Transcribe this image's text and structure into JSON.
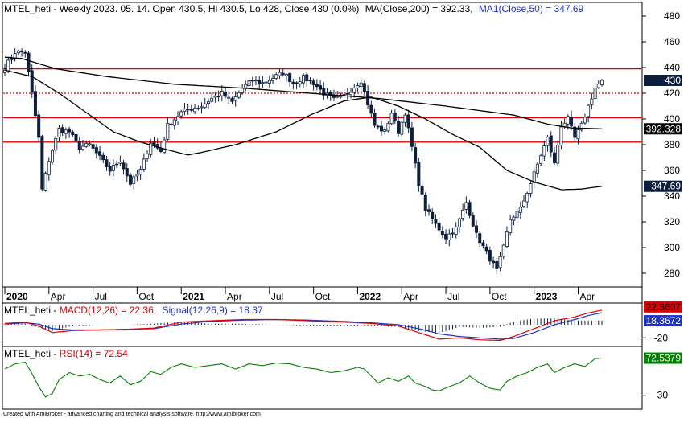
{
  "header": {
    "main": "MTEL_heti - Weekly 2023. 05. 14. Open 430.5, Hi 430.5, Lo 428, Close 430 (0.0%)",
    "ma200": "MA(Close,200) = 392.33,",
    "ma50": "MA1(Close,50) = 347.69"
  },
  "macd_header": {
    "prefix": "MTEL_heti - ",
    "macd": "MACD(12,26) = 22.36,",
    "signal": "Signal(12,26,9) = 18.37"
  },
  "rsi_header": {
    "prefix": "MTEL_heti - ",
    "rsi": "RSI(14) = 72.54"
  },
  "footer": "Created with AmiBroker - advanced charting and technical analysis software. http://www.amibroker.com",
  "colors": {
    "candle": "#0d1f3c",
    "ma": "#000000",
    "level": "#dd0000",
    "macd": "#dd0000",
    "signal": "#1e32c8",
    "rsi": "#008000",
    "hist": "#0d1f3c"
  },
  "chart_data": [
    {
      "type": "candlestick",
      "name": "MTEL_heti",
      "ylim": [
        270,
        490
      ],
      "yticks": [
        280,
        300,
        320,
        340,
        360,
        380,
        400,
        420,
        440,
        460,
        480
      ],
      "x_labels": [
        {
          "label": "2020",
          "bold": true,
          "w": 0
        },
        {
          "label": "Apr",
          "bold": false,
          "w": 13
        },
        {
          "label": "Jul",
          "bold": false,
          "w": 26
        },
        {
          "label": "Oct",
          "bold": false,
          "w": 39
        },
        {
          "label": "2021",
          "bold": true,
          "w": 52
        },
        {
          "label": "Apr",
          "bold": false,
          "w": 65
        },
        {
          "label": "Jul",
          "bold": false,
          "w": 78
        },
        {
          "label": "Oct",
          "bold": false,
          "w": 91
        },
        {
          "label": "2022",
          "bold": true,
          "w": 104
        },
        {
          "label": "Apr",
          "bold": false,
          "w": 117
        },
        {
          "label": "Jul",
          "bold": false,
          "w": 130
        },
        {
          "label": "Oct",
          "bold": false,
          "w": 143
        },
        {
          "label": "2023",
          "bold": true,
          "w": 156
        },
        {
          "label": "Apr",
          "bold": false,
          "w": 169
        }
      ],
      "horizontal_levels": [
        {
          "value": 439,
          "style": "solid"
        },
        {
          "value": 420,
          "style": "dotted"
        },
        {
          "value": 401,
          "style": "solid"
        },
        {
          "value": 382,
          "style": "solid"
        }
      ],
      "close_anchors": [
        [
          0,
          440
        ],
        [
          3,
          452
        ],
        [
          6,
          452
        ],
        [
          8,
          420
        ],
        [
          10,
          385
        ],
        [
          11,
          345
        ],
        [
          13,
          368
        ],
        [
          16,
          392
        ],
        [
          19,
          390
        ],
        [
          22,
          378
        ],
        [
          25,
          380
        ],
        [
          28,
          370
        ],
        [
          31,
          360
        ],
        [
          34,
          368
        ],
        [
          37,
          350
        ],
        [
          40,
          360
        ],
        [
          43,
          382
        ],
        [
          46,
          375
        ],
        [
          48,
          395
        ],
        [
          52,
          405
        ],
        [
          55,
          408
        ],
        [
          58,
          410
        ],
        [
          61,
          416
        ],
        [
          64,
          420
        ],
        [
          67,
          413
        ],
        [
          70,
          424
        ],
        [
          73,
          430
        ],
        [
          76,
          428
        ],
        [
          79,
          432
        ],
        [
          82,
          436
        ],
        [
          85,
          428
        ],
        [
          88,
          432
        ],
        [
          91,
          428
        ],
        [
          94,
          420
        ],
        [
          97,
          415
        ],
        [
          100,
          418
        ],
        [
          103,
          425
        ],
        [
          105,
          430
        ],
        [
          107,
          412
        ],
        [
          109,
          395
        ],
        [
          112,
          390
        ],
        [
          114,
          405
        ],
        [
          116,
          390
        ],
        [
          118,
          405
        ],
        [
          120,
          378
        ],
        [
          122,
          350
        ],
        [
          124,
          330
        ],
        [
          127,
          318
        ],
        [
          130,
          308
        ],
        [
          133,
          315
        ],
        [
          136,
          335
        ],
        [
          139,
          310
        ],
        [
          142,
          296
        ],
        [
          145,
          282
        ],
        [
          147,
          300
        ],
        [
          149,
          322
        ],
        [
          152,
          330
        ],
        [
          155,
          350
        ],
        [
          158,
          372
        ],
        [
          160,
          385
        ],
        [
          162,
          365
        ],
        [
          164,
          395
        ],
        [
          166,
          400
        ],
        [
          168,
          385
        ],
        [
          170,
          395
        ],
        [
          172,
          410
        ],
        [
          174,
          424
        ],
        [
          176,
          430
        ]
      ],
      "ma200_anchors": [
        [
          0,
          448
        ],
        [
          5,
          447
        ],
        [
          15,
          439
        ],
        [
          30,
          433
        ],
        [
          50,
          427
        ],
        [
          70,
          424
        ],
        [
          90,
          420
        ],
        [
          110,
          416
        ],
        [
          130,
          410
        ],
        [
          150,
          403
        ],
        [
          160,
          396
        ],
        [
          167,
          393
        ],
        [
          176,
          392.33
        ]
      ],
      "ma50_anchors": [
        [
          0,
          438
        ],
        [
          8,
          433
        ],
        [
          16,
          420
        ],
        [
          24,
          405
        ],
        [
          32,
          390
        ],
        [
          40,
          382
        ],
        [
          48,
          376
        ],
        [
          54,
          372
        ],
        [
          58,
          374
        ],
        [
          68,
          380
        ],
        [
          80,
          390
        ],
        [
          90,
          403
        ],
        [
          100,
          414
        ],
        [
          108,
          417
        ],
        [
          116,
          410
        ],
        [
          124,
          400
        ],
        [
          132,
          388
        ],
        [
          140,
          378
        ],
        [
          148,
          360
        ],
        [
          156,
          351
        ],
        [
          164,
          345
        ],
        [
          170,
          345.5
        ],
        [
          176,
          347.69
        ]
      ],
      "last_values": {
        "close": "430",
        "ma200": "392.328",
        "ma50": "347.69"
      }
    },
    {
      "type": "macd",
      "name": "MACD(12,26)",
      "ylim": [
        -32,
        32
      ],
      "yticks": [
        -20
      ],
      "macd_anchors": [
        [
          0,
          2
        ],
        [
          6,
          4
        ],
        [
          10,
          -2
        ],
        [
          14,
          -12
        ],
        [
          20,
          -9
        ],
        [
          28,
          -8
        ],
        [
          36,
          -7
        ],
        [
          44,
          -5
        ],
        [
          52,
          4
        ],
        [
          60,
          6
        ],
        [
          70,
          8
        ],
        [
          80,
          8
        ],
        [
          90,
          6
        ],
        [
          100,
          4
        ],
        [
          108,
          2
        ],
        [
          116,
          -2
        ],
        [
          122,
          -12
        ],
        [
          128,
          -22
        ],
        [
          134,
          -20
        ],
        [
          140,
          -23
        ],
        [
          146,
          -24
        ],
        [
          150,
          -18
        ],
        [
          156,
          -6
        ],
        [
          162,
          6
        ],
        [
          168,
          12
        ],
        [
          172,
          18
        ],
        [
          176,
          22.36
        ]
      ],
      "signal_anchors": [
        [
          0,
          1
        ],
        [
          6,
          3
        ],
        [
          10,
          1
        ],
        [
          14,
          -6
        ],
        [
          20,
          -8
        ],
        [
          28,
          -8
        ],
        [
          36,
          -7
        ],
        [
          44,
          -6
        ],
        [
          52,
          1
        ],
        [
          60,
          5
        ],
        [
          70,
          7
        ],
        [
          80,
          8
        ],
        [
          90,
          7
        ],
        [
          100,
          5
        ],
        [
          108,
          3
        ],
        [
          116,
          0
        ],
        [
          122,
          -6
        ],
        [
          128,
          -14
        ],
        [
          134,
          -18
        ],
        [
          140,
          -20
        ],
        [
          146,
          -22
        ],
        [
          150,
          -21
        ],
        [
          156,
          -12
        ],
        [
          162,
          0
        ],
        [
          168,
          8
        ],
        [
          172,
          14
        ],
        [
          176,
          18.37
        ]
      ],
      "last_values": {
        "macd": "22.3607",
        "signal": "18.3672"
      }
    },
    {
      "type": "rsi",
      "name": "RSI(14)",
      "ylim": [
        15,
        85
      ],
      "yticks": [
        30
      ],
      "rsi_anchors": [
        [
          0,
          60
        ],
        [
          3,
          66
        ],
        [
          6,
          68
        ],
        [
          8,
          55
        ],
        [
          10,
          40
        ],
        [
          12,
          28
        ],
        [
          14,
          32
        ],
        [
          16,
          48
        ],
        [
          19,
          56
        ],
        [
          22,
          52
        ],
        [
          25,
          54
        ],
        [
          28,
          48
        ],
        [
          31,
          44
        ],
        [
          34,
          52
        ],
        [
          37,
          42
        ],
        [
          40,
          46
        ],
        [
          43,
          57
        ],
        [
          46,
          54
        ],
        [
          49,
          62
        ],
        [
          52,
          66
        ],
        [
          56,
          62
        ],
        [
          60,
          64
        ],
        [
          64,
          66
        ],
        [
          68,
          60
        ],
        [
          72,
          66
        ],
        [
          76,
          64
        ],
        [
          80,
          67
        ],
        [
          84,
          66
        ],
        [
          88,
          62
        ],
        [
          92,
          60
        ],
        [
          96,
          56
        ],
        [
          100,
          58
        ],
        [
          104,
          62
        ],
        [
          106,
          60
        ],
        [
          108,
          52
        ],
        [
          110,
          44
        ],
        [
          113,
          50
        ],
        [
          116,
          46
        ],
        [
          119,
          52
        ],
        [
          121,
          44
        ],
        [
          124,
          40
        ],
        [
          126,
          36
        ],
        [
          128,
          35
        ],
        [
          131,
          40
        ],
        [
          134,
          44
        ],
        [
          137,
          52
        ],
        [
          140,
          44
        ],
        [
          143,
          38
        ],
        [
          146,
          36
        ],
        [
          148,
          46
        ],
        [
          151,
          52
        ],
        [
          154,
          56
        ],
        [
          157,
          62
        ],
        [
          160,
          66
        ],
        [
          162,
          56
        ],
        [
          165,
          62
        ],
        [
          168,
          66
        ],
        [
          171,
          63
        ],
        [
          174,
          72
        ],
        [
          176,
          72.54
        ]
      ],
      "last_values": {
        "rsi": "72.5379"
      }
    }
  ]
}
